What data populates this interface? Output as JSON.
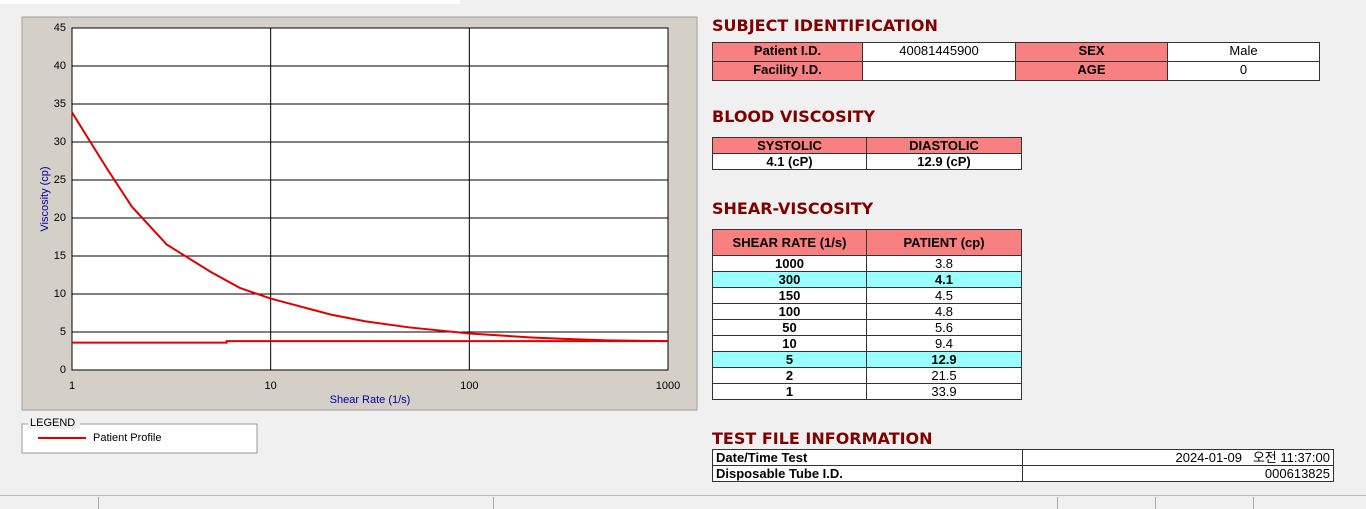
{
  "chart_data": {
    "type": "line",
    "xlabel": "Shear Rate (1/s)",
    "ylabel": "Viscosity (cp)",
    "log_x": true,
    "grid": true,
    "xlim": [
      1,
      1000
    ],
    "xticks": [
      1,
      10,
      100,
      1000
    ],
    "ylim": [
      0,
      45
    ],
    "yticks": [
      0,
      5,
      10,
      15,
      20,
      25,
      30,
      35,
      40,
      45
    ],
    "legend_title": "LEGEND",
    "series": [
      {
        "name": "Patient Profile",
        "color": "#e00000",
        "x": [
          1,
          1.5,
          2,
          3,
          5,
          7,
          10,
          20,
          30,
          50,
          100,
          200,
          300,
          500,
          1000
        ],
        "values": [
          33.9,
          26.5,
          21.5,
          16.5,
          12.9,
          10.8,
          9.4,
          7.3,
          6.4,
          5.6,
          4.8,
          4.3,
          4.1,
          3.9,
          3.8
        ]
      },
      {
        "color": "#e00000",
        "x": [
          1,
          6,
          6,
          1000
        ],
        "values": [
          3.6,
          3.6,
          3.8,
          3.8
        ]
      }
    ]
  },
  "subject": {
    "title": "SUBJECT IDENTIFICATION",
    "rows": [
      {
        "label": "Patient I.D.",
        "value": "40081445900",
        "label2": "SEX",
        "value2": "Male"
      },
      {
        "label": "Facility I.D.",
        "label2": "AGE",
        "value2": 0
      }
    ]
  },
  "blood": {
    "title": "BLOOD VISCOSITY",
    "headers": [
      "SYSTOLIC",
      "DIASTOLIC"
    ],
    "values": [
      "4.1 (cP)",
      "12.9 (cP)"
    ]
  },
  "shear": {
    "title": "SHEAR-VISCOSITY",
    "headers": [
      "SHEAR RATE (1/s)",
      "PATIENT (cp)"
    ],
    "rows": [
      [
        1000,
        3.8
      ],
      [
        300,
        4.1
      ],
      [
        150,
        4.5
      ],
      [
        100,
        4.8
      ],
      [
        50,
        5.6
      ],
      [
        10,
        9.4
      ],
      [
        5,
        12.9
      ],
      [
        2,
        21.5
      ],
      [
        1,
        33.9
      ]
    ],
    "highlight_rows": [
      1,
      6
    ]
  },
  "test_file": {
    "title": "TEST FILE INFORMATION",
    "rows": [
      [
        "Date/Time Test",
        "2024-01-09   오전 11:37:00"
      ],
      [
        "Disposable Tube I.D.",
        "000613825"
      ]
    ]
  }
}
